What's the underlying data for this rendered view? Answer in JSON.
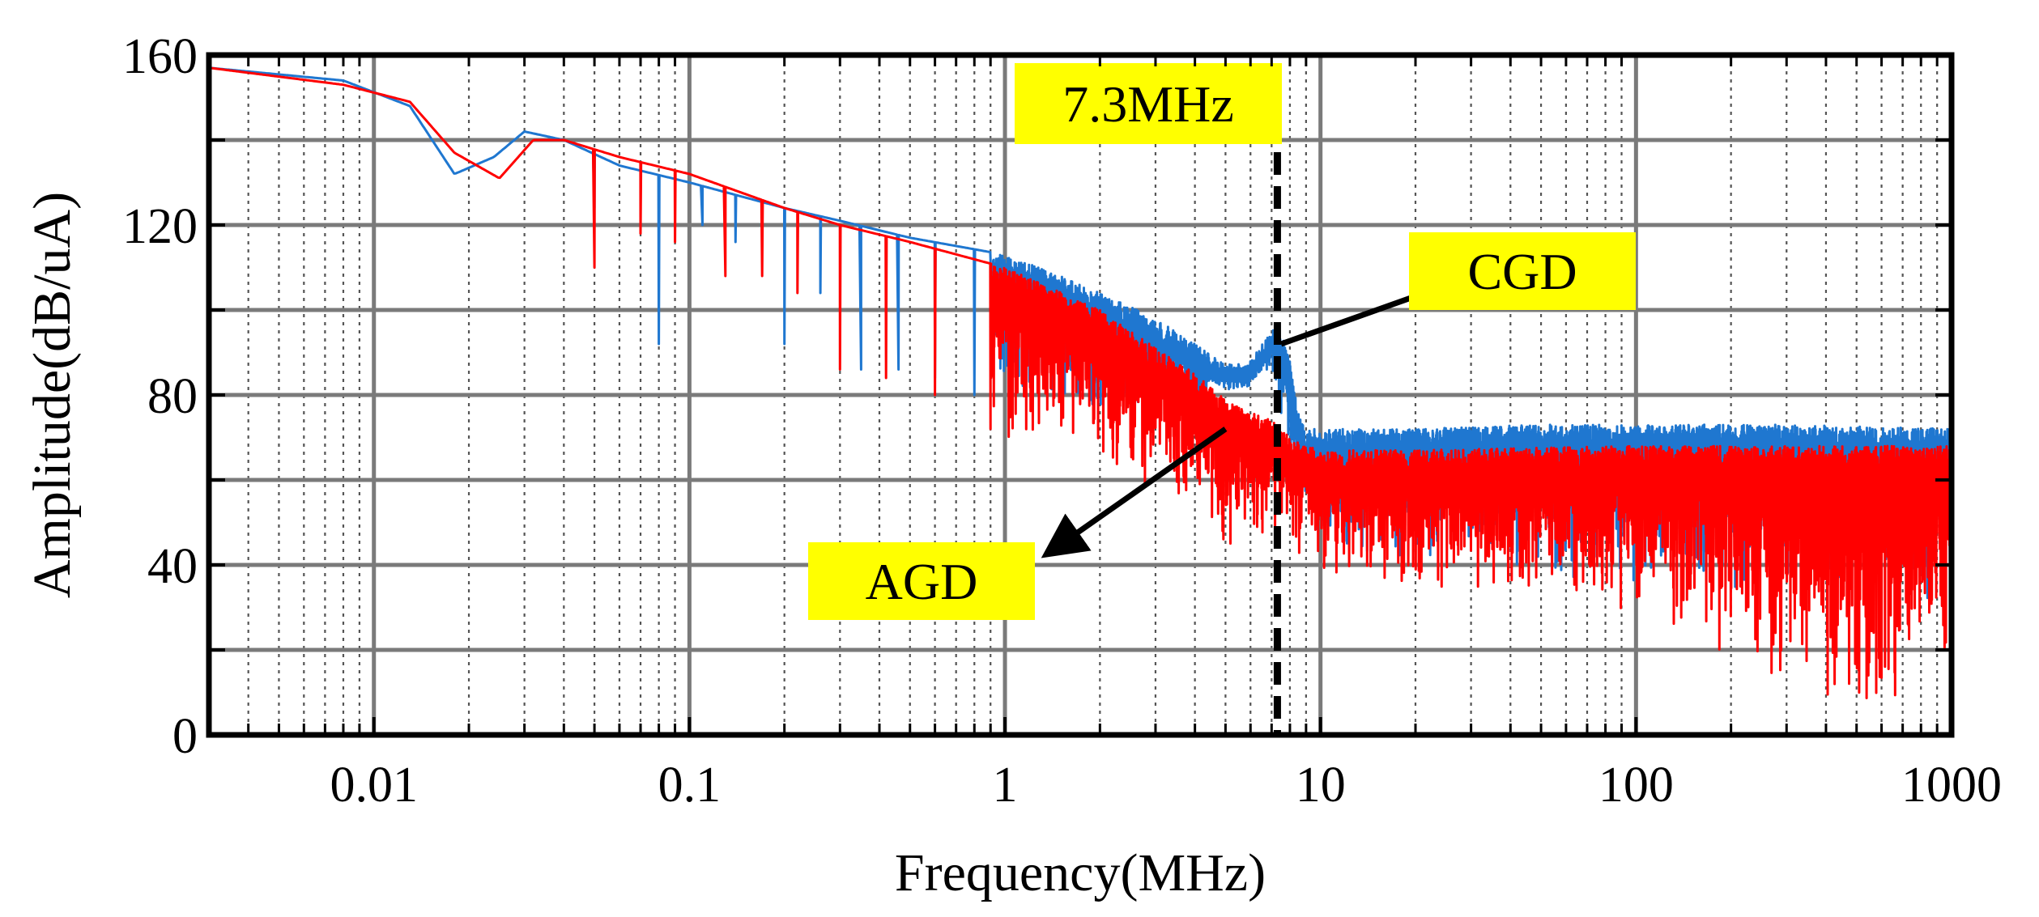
{
  "chart_data": {
    "type": "line",
    "title": "",
    "xlabel": "Frequency(MHz)",
    "ylabel": "Amplitude(dB/uA)",
    "xscale": "log",
    "xlim": [
      0.003,
      1000
    ],
    "ylim": [
      0,
      160
    ],
    "grid": true,
    "x_ticks": [
      0.01,
      0.1,
      1,
      10,
      100,
      1000
    ],
    "x_tick_labels": [
      "0.01",
      "0.1",
      "1",
      "10",
      "100",
      "1000"
    ],
    "y_ticks": [
      0,
      40,
      80,
      120,
      160
    ],
    "y_tick_labels": [
      "0",
      "40",
      "80",
      "120",
      "160"
    ],
    "series": [
      {
        "name": "CGD",
        "color": "#1f77d0",
        "envelope": [
          [
            0.003,
            157
          ],
          [
            0.008,
            154
          ],
          [
            0.013,
            148
          ],
          [
            0.018,
            132
          ],
          [
            0.024,
            136
          ],
          [
            0.03,
            142
          ],
          [
            0.04,
            140
          ],
          [
            0.06,
            134
          ],
          [
            0.1,
            130
          ],
          [
            0.2,
            124
          ],
          [
            0.3,
            121
          ],
          [
            0.5,
            117
          ],
          [
            1,
            113
          ],
          [
            1.5,
            108
          ],
          [
            2,
            104
          ],
          [
            3,
            98
          ],
          [
            4,
            92
          ],
          [
            5,
            87
          ],
          [
            6,
            88
          ],
          [
            7,
            95
          ],
          [
            7.3,
            98
          ],
          [
            8,
            88
          ],
          [
            8.5,
            76
          ],
          [
            9,
            72
          ],
          [
            10,
            72
          ],
          [
            20,
            72
          ],
          [
            50,
            73
          ],
          [
            100,
            73
          ],
          [
            300,
            73
          ],
          [
            1000,
            72
          ]
        ],
        "floor": [
          [
            0.03,
            128
          ],
          [
            0.05,
            124
          ],
          [
            0.08,
            92
          ],
          [
            0.1,
            112
          ],
          [
            0.2,
            92
          ],
          [
            0.3,
            90
          ],
          [
            0.5,
            88
          ],
          [
            1,
            82
          ],
          [
            2,
            78
          ],
          [
            4,
            76
          ],
          [
            5,
            82
          ],
          [
            6,
            84
          ],
          [
            7,
            86
          ],
          [
            8,
            66
          ],
          [
            10,
            45
          ],
          [
            100,
            38
          ],
          [
            1000,
            35
          ]
        ],
        "notch_depths": [
          [
            0.05,
            124
          ],
          [
            0.08,
            92
          ],
          [
            0.11,
            120
          ],
          [
            0.14,
            116
          ],
          [
            0.2,
            92
          ],
          [
            0.26,
            104
          ],
          [
            0.35,
            86
          ],
          [
            0.46,
            86
          ],
          [
            0.6,
            84
          ],
          [
            0.8,
            80
          ]
        ]
      },
      {
        "name": "AGD",
        "color": "#ff0000",
        "envelope": [
          [
            0.003,
            157
          ],
          [
            0.008,
            153
          ],
          [
            0.013,
            149
          ],
          [
            0.018,
            137
          ],
          [
            0.025,
            131
          ],
          [
            0.032,
            140
          ],
          [
            0.04,
            140
          ],
          [
            0.06,
            136
          ],
          [
            0.1,
            132
          ],
          [
            0.2,
            124
          ],
          [
            0.3,
            120
          ],
          [
            0.5,
            116
          ],
          [
            1,
            110
          ],
          [
            2,
            100
          ],
          [
            3,
            91
          ],
          [
            4,
            85
          ],
          [
            5,
            79
          ],
          [
            6,
            76
          ],
          [
            7,
            74
          ],
          [
            8,
            70
          ],
          [
            10,
            67
          ],
          [
            20,
            67
          ],
          [
            100,
            68
          ],
          [
            1000,
            68
          ]
        ],
        "floor": [
          [
            0.05,
            112
          ],
          [
            0.07,
            110
          ],
          [
            0.1,
            110
          ],
          [
            0.2,
            104
          ],
          [
            0.3,
            86
          ],
          [
            0.5,
            84
          ],
          [
            0.9,
            72
          ],
          [
            1.5,
            70
          ],
          [
            3,
            60
          ],
          [
            5,
            45
          ],
          [
            7,
            47
          ],
          [
            10,
            40
          ],
          [
            100,
            30
          ],
          [
            600,
            6
          ],
          [
            1000,
            25
          ]
        ],
        "notch_depths": [
          [
            0.05,
            110
          ],
          [
            0.07,
            118
          ],
          [
            0.09,
            116
          ],
          [
            0.13,
            108
          ],
          [
            0.17,
            108
          ],
          [
            0.22,
            104
          ],
          [
            0.3,
            86
          ],
          [
            0.42,
            84
          ],
          [
            0.6,
            80
          ],
          [
            0.9,
            72
          ]
        ]
      }
    ],
    "annotations": [
      {
        "text": "7.3MHz",
        "x": 7.3,
        "marker": "vertical dashed line",
        "box_color": "#ffff00"
      },
      {
        "text": "CGD",
        "arrow_from": [
          7.5,
          92
        ],
        "arrow_to": [
          22,
          102
        ],
        "box_color": "#ffff00"
      },
      {
        "text": "AGD",
        "arrow_from": [
          5,
          72
        ],
        "arrow_to": [
          1.1,
          46
        ],
        "box_color": "#ffff00"
      }
    ]
  }
}
